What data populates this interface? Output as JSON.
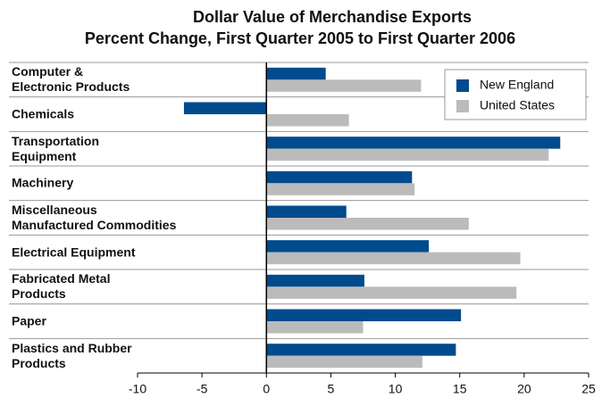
{
  "chart_data": {
    "type": "barh",
    "title": "Dollar Value of Merchandise Exports",
    "subtitle": "Percent Change, First Quarter 2005 to First Quarter 2006",
    "categories": [
      "Computer &\nElectronic Products",
      "Chemicals",
      "Transportation\nEquipment",
      "Machinery",
      "Miscellaneous\nManufactured Commodities",
      "Electrical Equipment",
      "Fabricated Metal\nProducts",
      "Paper",
      "Plastics and Rubber\nProducts"
    ],
    "series": [
      {
        "name": "New England",
        "color": "#004b8d",
        "values": [
          4.6,
          -6.4,
          22.8,
          11.3,
          6.2,
          12.6,
          7.6,
          15.1,
          14.7
        ]
      },
      {
        "name": "United States",
        "color": "#bbbbbb",
        "values": [
          12.0,
          6.4,
          21.9,
          11.5,
          15.7,
          19.7,
          19.4,
          7.5,
          12.1
        ]
      }
    ],
    "xlim": [
      -10,
      25
    ],
    "xticks": [
      -10,
      -5,
      0,
      5,
      10,
      15,
      20,
      25
    ],
    "legend": "upper right"
  }
}
